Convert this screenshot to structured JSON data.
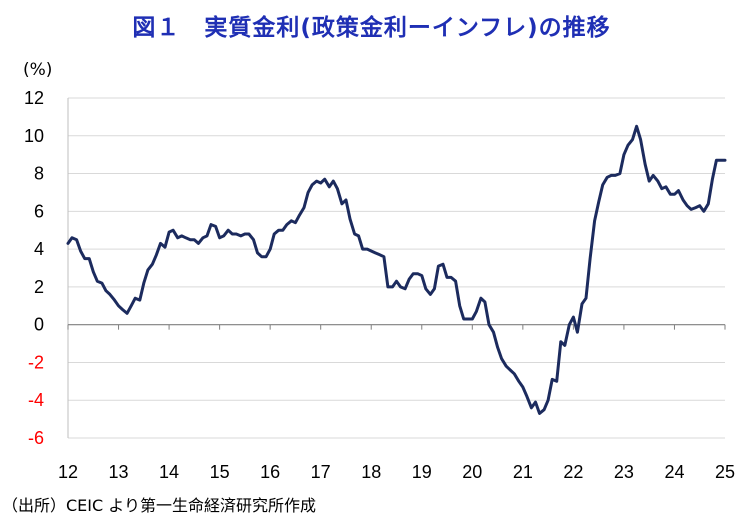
{
  "title": "図１　実質金利(政策金利ーインフレ)の推移",
  "unit_label": "(%)",
  "source": "（出所）CEIC より第一生命経済研究所作成",
  "colors": {
    "line": "#1c2b5e",
    "title": "#1f2fb4",
    "negative_tick": "#ff0000",
    "grid": "#d9d9d9"
  },
  "chart_data": {
    "type": "line",
    "title": "図１　実質金利(政策金利ーインフレ)の推移",
    "ylabel": "(%)",
    "xlabel": "",
    "ylim": [
      -6,
      12
    ],
    "y_ticks": [
      12,
      10,
      8,
      6,
      4,
      2,
      0,
      -2,
      -4,
      -6
    ],
    "x_tick_labels": [
      "12",
      "13",
      "14",
      "15",
      "16",
      "17",
      "18",
      "19",
      "20",
      "21",
      "22",
      "23",
      "24",
      "25"
    ],
    "x_range": [
      2012,
      2025
    ],
    "grid": "horizontal",
    "series": [
      {
        "x": [
          2012.0,
          2012.08,
          2012.17,
          2012.25,
          2012.33,
          2012.42,
          2012.5,
          2012.58,
          2012.67,
          2012.75,
          2012.83,
          2012.92,
          2013.0,
          2013.08,
          2013.17,
          2013.25,
          2013.33,
          2013.42,
          2013.5,
          2013.58,
          2013.67,
          2013.75,
          2013.83,
          2013.92,
          2014.0,
          2014.08,
          2014.17,
          2014.25,
          2014.33,
          2014.42,
          2014.5,
          2014.58,
          2014.67,
          2014.75,
          2014.83,
          2014.92,
          2015.0,
          2015.08,
          2015.17,
          2015.25,
          2015.33,
          2015.42,
          2015.5,
          2015.58,
          2015.67,
          2015.75,
          2015.83,
          2015.92,
          2016.0,
          2016.08,
          2016.17,
          2016.25,
          2016.33,
          2016.42,
          2016.5,
          2016.58,
          2016.67,
          2016.75,
          2016.83,
          2016.92,
          2017.0,
          2017.08,
          2017.17,
          2017.25,
          2017.33,
          2017.42,
          2017.5,
          2017.58,
          2017.67,
          2017.75,
          2017.83,
          2017.92,
          2018.0,
          2018.08,
          2018.17,
          2018.25,
          2018.33,
          2018.42,
          2018.5,
          2018.58,
          2018.67,
          2018.75,
          2018.83,
          2018.92,
          2019.0,
          2019.08,
          2019.17,
          2019.25,
          2019.33,
          2019.42,
          2019.5,
          2019.58,
          2019.67,
          2019.75,
          2019.83,
          2019.92,
          2020.0,
          2020.08,
          2020.17,
          2020.25,
          2020.33,
          2020.42,
          2020.5,
          2020.58,
          2020.67,
          2020.75,
          2020.83,
          2020.92,
          2021.0,
          2021.08,
          2021.17,
          2021.25,
          2021.33,
          2021.42,
          2021.5,
          2021.58,
          2021.67,
          2021.75,
          2021.83,
          2021.92,
          2022.0,
          2022.08,
          2022.17,
          2022.25,
          2022.33,
          2022.42,
          2022.5,
          2022.58,
          2022.67,
          2022.75,
          2022.83,
          2022.92,
          2023.0,
          2023.08,
          2023.17,
          2023.25,
          2023.33,
          2023.42,
          2023.5,
          2023.58,
          2023.67,
          2023.75,
          2023.83,
          2023.92,
          2024.0,
          2024.08,
          2024.17,
          2024.25,
          2024.33,
          2024.42,
          2024.5,
          2024.58,
          2024.67,
          2024.75,
          2024.83,
          2024.92,
          2025.0
        ],
        "values": [
          4.3,
          4.6,
          4.5,
          3.9,
          3.5,
          3.5,
          2.8,
          2.3,
          2.2,
          1.8,
          1.6,
          1.3,
          1.0,
          0.8,
          0.6,
          1.0,
          1.4,
          1.3,
          2.2,
          2.9,
          3.2,
          3.7,
          4.3,
          4.1,
          4.9,
          5.0,
          4.6,
          4.7,
          4.6,
          4.5,
          4.5,
          4.3,
          4.6,
          4.7,
          5.3,
          5.2,
          4.6,
          4.7,
          5.0,
          4.8,
          4.8,
          4.7,
          4.8,
          4.8,
          4.5,
          3.8,
          3.6,
          3.6,
          4.0,
          4.8,
          5.0,
          5.0,
          5.3,
          5.5,
          5.4,
          5.8,
          6.2,
          7.0,
          7.4,
          7.6,
          7.5,
          7.7,
          7.3,
          7.6,
          7.2,
          6.4,
          6.6,
          5.6,
          4.8,
          4.7,
          4.0,
          4.0,
          3.9,
          3.8,
          3.7,
          3.6,
          2.0,
          2.0,
          2.3,
          2.0,
          1.9,
          2.4,
          2.7,
          2.7,
          2.6,
          1.9,
          1.6,
          1.9,
          3.1,
          3.2,
          2.5,
          2.5,
          2.3,
          1.0,
          0.3,
          0.3,
          0.3,
          0.7,
          1.4,
          1.2,
          0.0,
          -0.4,
          -1.2,
          -1.8,
          -2.2,
          -2.4,
          -2.6,
          -3.0,
          -3.3,
          -3.8,
          -4.4,
          -4.1,
          -4.7,
          -4.5,
          -4.0,
          -2.9,
          -3.0,
          -0.9,
          -1.1,
          0.0,
          0.4,
          -0.4,
          1.1,
          1.4,
          3.5,
          5.5,
          6.5,
          7.4,
          7.8,
          7.9,
          7.9,
          8.0,
          9.0,
          9.5,
          9.8,
          10.5,
          9.8,
          8.5,
          7.6,
          7.9,
          7.6,
          7.2,
          7.3,
          6.9,
          6.9,
          7.1,
          6.6,
          6.3,
          6.1,
          6.2,
          6.3,
          6.0,
          6.4,
          7.7,
          8.7,
          8.7,
          8.7
        ]
      }
    ]
  }
}
